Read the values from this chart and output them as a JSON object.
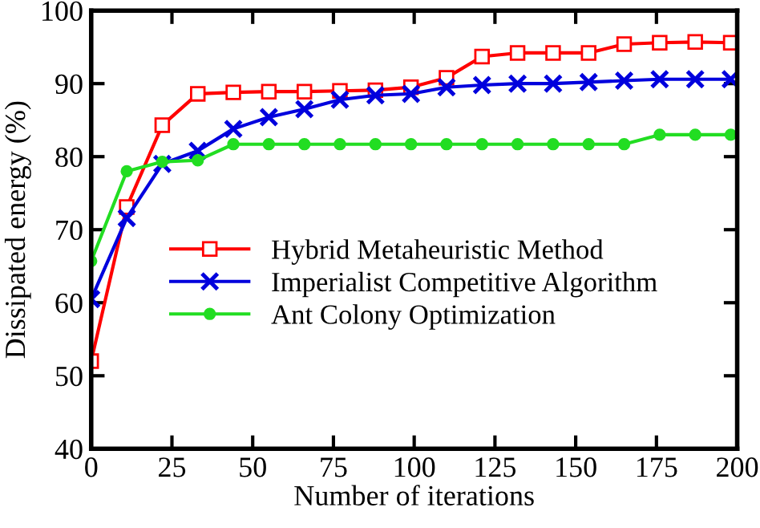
{
  "chart_data": {
    "type": "line",
    "xlabel": "Number of iterations",
    "ylabel": "Dissipated energy (%)",
    "xlim": [
      0,
      200
    ],
    "ylim": [
      40,
      100
    ],
    "xticks": [
      0,
      25,
      50,
      75,
      100,
      125,
      150,
      175,
      200
    ],
    "yticks": [
      40,
      50,
      60,
      70,
      80,
      90,
      100
    ],
    "grid": false,
    "legend": "center",
    "line_style": "solid",
    "x": [
      0,
      11,
      22,
      33,
      44,
      55,
      66,
      77,
      88,
      99,
      110,
      121,
      132,
      143,
      154,
      165,
      176,
      187,
      198
    ],
    "series": [
      {
        "name": "Hybrid Metaheuristic Method",
        "color": "#ff0000",
        "marker": "square",
        "values": [
          52,
          73.1,
          84.3,
          88.6,
          88.8,
          88.9,
          88.9,
          89,
          89.1,
          89.5,
          90.8,
          93.7,
          94.2,
          94.2,
          94.2,
          95.4,
          95.6,
          95.7,
          95.6
        ]
      },
      {
        "name": "Imperialist Competitive Algorithm",
        "color": "#0000dd",
        "marker": "cross",
        "values": [
          60.5,
          71.6,
          79,
          80.8,
          83.8,
          85.4,
          86.5,
          87.8,
          88.4,
          88.6,
          89.5,
          89.8,
          90,
          90,
          90.2,
          90.4,
          90.6,
          90.6,
          90.6
        ]
      },
      {
        "name": "Ant Colony Optimization",
        "color": "#22dd22",
        "marker": "circle",
        "values": [
          65.7,
          78,
          79.3,
          79.5,
          81.7,
          81.7,
          81.7,
          81.7,
          81.7,
          81.7,
          81.7,
          81.7,
          81.7,
          81.7,
          81.7,
          81.7,
          83,
          83,
          83
        ]
      }
    ]
  }
}
